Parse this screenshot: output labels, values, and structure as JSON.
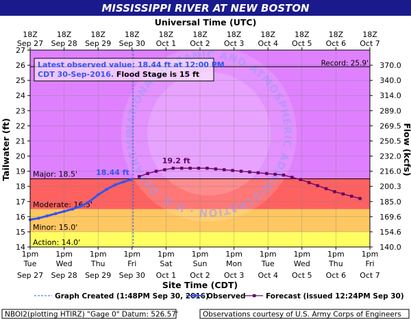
{
  "chart_data": {
    "type": "line",
    "title": "MISSISSIPPI RIVER AT NEW BOSTON",
    "top_axis_title": "Universal Time (UTC)",
    "top_ticks": [
      [
        "18Z",
        "Sep 27"
      ],
      [
        "18Z",
        "Sep 28"
      ],
      [
        "18Z",
        "Sep 29"
      ],
      [
        "18Z",
        "Sep 30"
      ],
      [
        "18Z",
        "Oct 1"
      ],
      [
        "18Z",
        "Oct 2"
      ],
      [
        "18Z",
        "Oct 3"
      ],
      [
        "18Z",
        "Oct 4"
      ],
      [
        "18Z",
        "Oct 5"
      ],
      [
        "18Z",
        "Oct 6"
      ],
      [
        "18Z",
        "Oct 7"
      ]
    ],
    "bottom_axis_title": "Site Time (CDT)",
    "bottom_ticks": [
      [
        "1pm",
        "Tue",
        "Sep 27"
      ],
      [
        "1pm",
        "Wed",
        "Sep 28"
      ],
      [
        "1pm",
        "Thu",
        "Sep 29"
      ],
      [
        "1pm",
        "Fri",
        "Sep 30"
      ],
      [
        "1pm",
        "Sat",
        "Oct 1"
      ],
      [
        "1pm",
        "Sun",
        "Oct 2"
      ],
      [
        "1pm",
        "Mon",
        "Oct 3"
      ],
      [
        "1pm",
        "Tue",
        "Oct 4"
      ],
      [
        "1pm",
        "Wed",
        "Oct 5"
      ],
      [
        "1pm",
        "Thu",
        "Oct 6"
      ],
      [
        "1pm",
        "Fri",
        "Oct 7"
      ]
    ],
    "ylabel_left": "Tailwater (ft)",
    "ylabel_right": "Flow (kcfs)",
    "ylim": [
      14,
      27
    ],
    "xlim_days": [
      0,
      10
    ],
    "y_ticks_left": [
      14,
      15,
      16,
      17,
      18,
      19,
      20,
      21,
      22,
      23,
      24,
      25,
      26,
      27
    ],
    "y_ticks_right": [
      {
        "stage": 14,
        "label": "140.0"
      },
      {
        "stage": 15,
        "label": "154.6"
      },
      {
        "stage": 16,
        "label": "169.6"
      },
      {
        "stage": 17,
        "label": "185.0"
      },
      {
        "stage": 18,
        "label": "200.3"
      },
      {
        "stage": 19,
        "label": "216.0"
      },
      {
        "stage": 20,
        "label": "232.0"
      },
      {
        "stage": 21,
        "label": "250.5"
      },
      {
        "stage": 22,
        "label": "269.5"
      },
      {
        "stage": 23,
        "label": "289.0"
      },
      {
        "stage": 24,
        "label": "314.0"
      },
      {
        "stage": 25,
        "label": "340.0"
      },
      {
        "stage": 26,
        "label": "370.0"
      }
    ],
    "flood_bands": [
      {
        "name": "Action",
        "from": 14,
        "to": 15,
        "color": "#ffff00",
        "label": "Action: 14.0'"
      },
      {
        "name": "Minor",
        "from": 15,
        "to": 16.5,
        "color": "#ffa500",
        "label": "Minor: 15.0'"
      },
      {
        "name": "Moderate",
        "from": 16.5,
        "to": 18.5,
        "color": "#ff0000",
        "label": "Moderate: 16.5'"
      },
      {
        "name": "Major",
        "from": 18.5,
        "to": 27,
        "color": "#cc33ff",
        "label": "Major: 18.5'"
      }
    ],
    "record": {
      "value": 25.9,
      "label": "Record: 25.9'"
    },
    "major_line": 18.5,
    "info_box": {
      "line1": "Latest observed value: 18.44 ft at 12:00 PM",
      "line2_blue": "CDT 30-Sep-2016.",
      "line2_black": " Flood Stage is 15 ft"
    },
    "watermark": "NATIONAL OCEANIC AND ATMOSPHERIC ADMINISTRATION · U.S. DEPARTMENT OF COMMERCE · NOAA",
    "created_day": 3.03,
    "series": [
      {
        "name": "Observed",
        "color": "#3355ee",
        "x": [
          0,
          0.25,
          0.5,
          0.75,
          1.0,
          1.25,
          1.5,
          1.75,
          2.0,
          2.25,
          2.5,
          2.75,
          2.96
        ],
        "y": [
          15.8,
          15.9,
          16.05,
          16.2,
          16.35,
          16.5,
          16.7,
          17.0,
          17.45,
          17.8,
          18.1,
          18.3,
          18.44
        ],
        "label": "18.44 ft",
        "label_at": 2.96
      },
      {
        "name": "Forecast (issued 12:24PM Sep 30)",
        "color": "#660066",
        "x": [
          3.21,
          3.46,
          3.71,
          3.96,
          4.21,
          4.46,
          4.71,
          4.96,
          5.21,
          5.46,
          5.71,
          5.96,
          6.21,
          6.46,
          6.71,
          6.96,
          7.21,
          7.46,
          7.71,
          7.96,
          8.21,
          8.46,
          8.71,
          8.96,
          9.21,
          9.46,
          9.71
        ],
        "y": [
          18.65,
          18.85,
          19.0,
          19.1,
          19.2,
          19.2,
          19.2,
          19.2,
          19.2,
          19.15,
          19.1,
          19.05,
          19.0,
          18.95,
          18.9,
          18.85,
          18.8,
          18.75,
          18.6,
          18.45,
          18.25,
          18.05,
          17.85,
          17.65,
          17.5,
          17.35,
          17.2
        ],
        "label": "19.2 ft",
        "label_at": 4.3
      }
    ],
    "legend": {
      "created": "Graph Created (1:48PM Sep 30, 2016)",
      "observed": "Observed",
      "forecast": "Forecast (issued 12:24PM Sep 30)"
    },
    "footer_left": "NBOI2(plotting HTIRZ) \"Gage 0\" Datum:  526.57'",
    "footer_right": "Observations courtesy of U.S. Army Corps of Engineers"
  }
}
